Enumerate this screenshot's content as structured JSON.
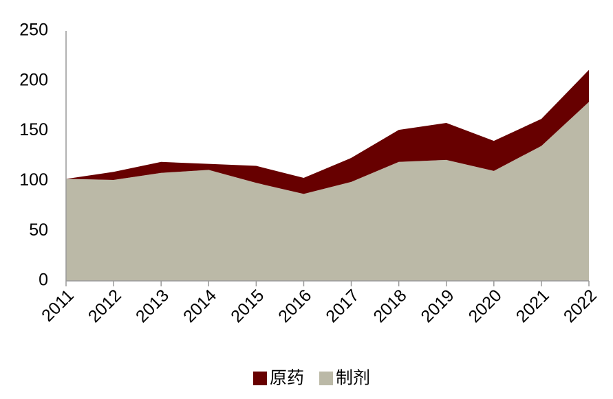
{
  "chart_data": {
    "type": "stacked_area",
    "categories": [
      "2011",
      "2012",
      "2013",
      "2014",
      "2015",
      "2016",
      "2017",
      "2018",
      "2019",
      "2020",
      "2021",
      "2022"
    ],
    "series": [
      {
        "name": "原药",
        "color": "#670000",
        "values": [
          0,
          8,
          11,
          6,
          17,
          16,
          24,
          32,
          37,
          30,
          27,
          32
        ]
      },
      {
        "name": "制剂",
        "color": "#bbb9a7",
        "values": [
          102,
          101,
          108,
          111,
          98,
          87,
          99,
          119,
          121,
          110,
          135,
          179
        ]
      }
    ],
    "ylim": [
      0,
      250
    ],
    "yticks": [
      0,
      50,
      100,
      150,
      200,
      250
    ],
    "legend": "bottom"
  }
}
